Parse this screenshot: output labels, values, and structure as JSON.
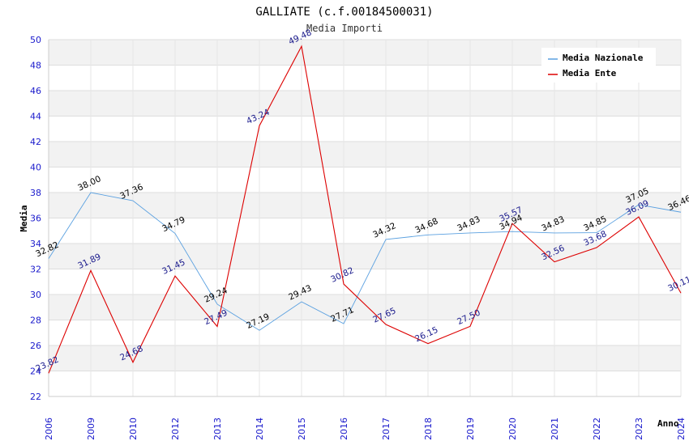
{
  "chart_data": {
    "type": "line",
    "title": "GALLIATE (c.f.00184500031)",
    "subtitle": "Media Importi",
    "xlabel": "Anno",
    "ylabel": "Media",
    "ylim": [
      22,
      50
    ],
    "yticks": [
      "22",
      "24",
      "26",
      "28",
      "30",
      "32",
      "34",
      "36",
      "38",
      "40",
      "42",
      "44",
      "46",
      "48",
      "50"
    ],
    "categories": [
      "2006",
      "2009",
      "2010",
      "2012",
      "2013",
      "2014",
      "2015",
      "2016",
      "2017",
      "2018",
      "2019",
      "2020",
      "2021",
      "2022",
      "2023",
      "2024"
    ],
    "series": [
      {
        "name": "Media Nazionale",
        "color": "#5aa0e0",
        "values": [
          32.82,
          38.0,
          37.36,
          34.79,
          29.24,
          27.19,
          29.43,
          27.71,
          34.32,
          34.68,
          34.83,
          34.94,
          34.83,
          34.85,
          37.05,
          36.46
        ],
        "labels": [
          "32.82",
          "38.00",
          "37.36",
          "34.79",
          "29.24",
          "27.19",
          "29.43",
          "27.71",
          "34.32",
          "34.68",
          "34.83",
          "34.94",
          "34.83",
          "34.85",
          "37.05",
          "36.46"
        ]
      },
      {
        "name": "Media Ente",
        "color": "#dd0000",
        "values": [
          23.82,
          31.89,
          24.68,
          31.45,
          27.49,
          43.24,
          49.48,
          30.82,
          27.65,
          26.15,
          27.5,
          35.57,
          32.56,
          33.68,
          36.09,
          30.11
        ],
        "labels": [
          "23.82",
          "31.89",
          "24.68",
          "31.45",
          "27.49",
          "43.24",
          "49.48",
          "30.82",
          "27.65",
          "26.15",
          "27.50",
          "35.57",
          "32.56",
          "33.68",
          "36.09",
          "30.11"
        ]
      }
    ],
    "legend_position": "top-right",
    "grid": true
  }
}
